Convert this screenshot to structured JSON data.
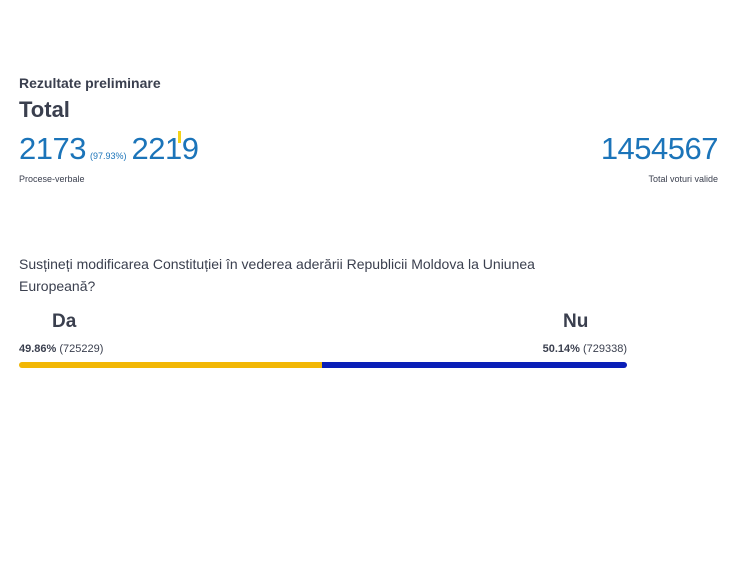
{
  "header": {
    "subtitle": "Rezultate preliminare",
    "title": "Total"
  },
  "protocols": {
    "processed": "2173",
    "percent": "(97.93%)",
    "total": "2219",
    "label": "Procese-verbale"
  },
  "valid_votes": {
    "value": "1454567",
    "label": "Total voturi valide"
  },
  "referendum": {
    "question": "Susțineți modificarea Constituției în vederea aderării Republicii Moldova la Uniunea Europeană?",
    "options": [
      {
        "name": "Da",
        "percent": "49.86%",
        "votes": "(725229)",
        "share": 0.4986,
        "color": "#f2b705"
      },
      {
        "name": "Nu",
        "percent": "50.14%",
        "votes": "(729338)",
        "share": 0.5014,
        "color": "#0a1fb7"
      }
    ]
  }
}
